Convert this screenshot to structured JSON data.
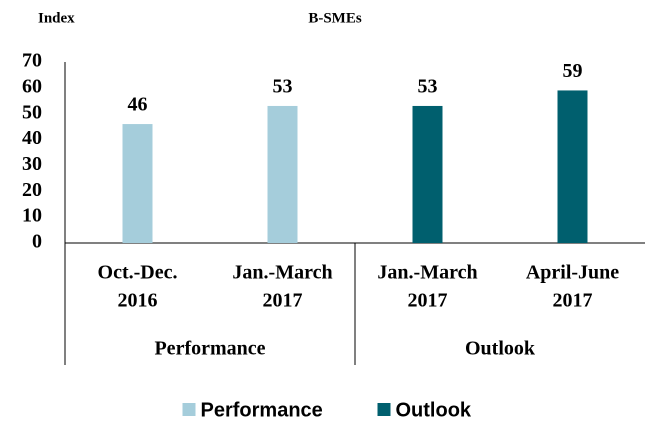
{
  "chart_data": {
    "type": "bar",
    "title": "B-SMEs",
    "y_label": "Index",
    "categories": [
      [
        "Oct.-Dec.",
        "2016"
      ],
      [
        "Jan.-March",
        "2017"
      ],
      [
        "Jan.-March",
        "2017"
      ],
      [
        "April-June",
        "2017"
      ]
    ],
    "series": [
      {
        "name": "Performance",
        "color": "#a5cddb",
        "values": [
          46,
          53,
          null,
          null
        ]
      },
      {
        "name": "Outlook",
        "color": "#005f6e",
        "values": [
          null,
          null,
          53,
          59
        ]
      }
    ],
    "ylim": [
      0,
      70
    ],
    "yticks": [
      0,
      10,
      20,
      30,
      40,
      50,
      60,
      70
    ],
    "grid": false,
    "legend": "bottom"
  }
}
